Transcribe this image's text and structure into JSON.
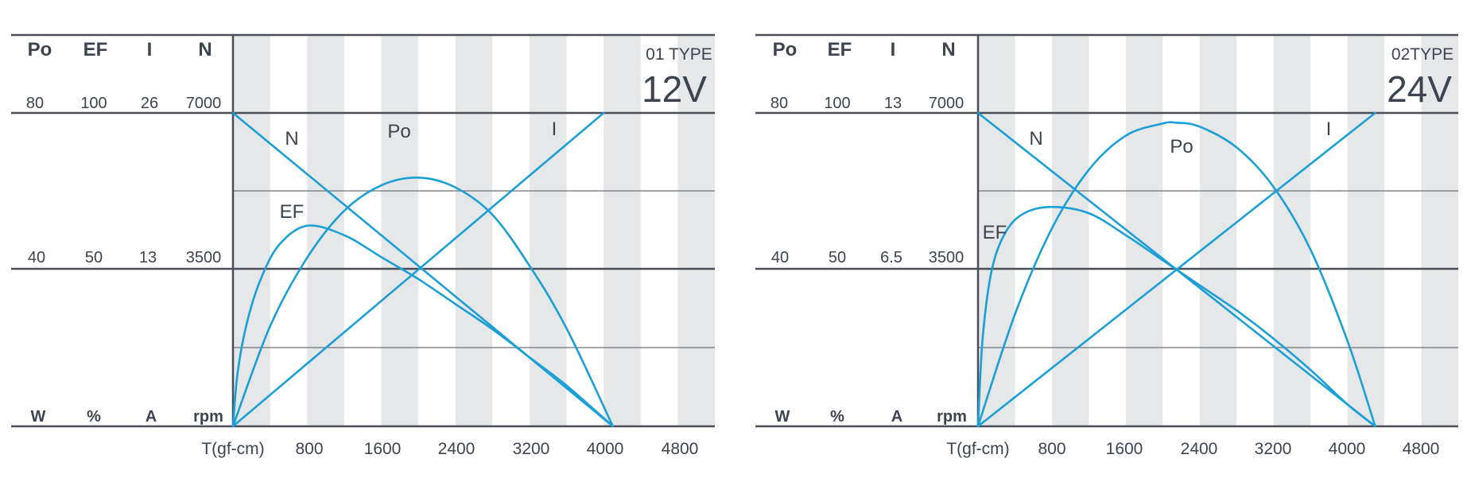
{
  "colors": {
    "curve": "#1a9fd6",
    "grid_dark": "#4a4f57",
    "grid_light": "#6d7178",
    "band": "#e6e7e9",
    "text": "#3d4450"
  },
  "chart_data": [
    {
      "type": "line",
      "type_label": "01 TYPE",
      "voltage": "12V",
      "xlabel": "T(gf-cm)",
      "x_ticks": [
        "800",
        "1600",
        "2400",
        "3200",
        "4000",
        "4800"
      ],
      "xlim": [
        0,
        5200
      ],
      "headers": [
        "Po",
        "EF",
        "I",
        "N"
      ],
      "scale_top": [
        "80",
        "100",
        "26",
        "7000"
      ],
      "scale_mid": [
        "40",
        "50",
        "13",
        "3500"
      ],
      "units": [
        "W",
        "%",
        "A",
        "rpm"
      ],
      "curve_labels": {
        "N": "N",
        "Po": "Po",
        "I": "I",
        "EF": "EF"
      },
      "series": [
        {
          "name": "N",
          "unit": "rpm",
          "max": 7000,
          "x": [
            0,
            4100
          ],
          "values": [
            7000,
            0
          ]
        },
        {
          "name": "I",
          "unit": "A",
          "max": 26,
          "x": [
            0,
            4000
          ],
          "values": [
            0,
            26
          ]
        },
        {
          "name": "Po",
          "unit": "W",
          "max": 80,
          "x": [
            0,
            400,
            800,
            1200,
            1600,
            2000,
            2400,
            2800,
            3200,
            3600,
            4100
          ],
          "values": [
            0,
            25.5,
            43,
            55,
            61.5,
            63.5,
            61,
            54,
            41,
            25,
            0
          ]
        },
        {
          "name": "EF",
          "unit": "%",
          "max": 100,
          "x": [
            0,
            50,
            150,
            300,
            500,
            800,
            1200,
            1600,
            2000,
            2400,
            2800,
            3200,
            3600,
            4100
          ],
          "values": [
            0,
            17,
            33,
            47,
            58,
            64,
            61,
            54,
            47,
            39,
            31,
            22,
            13,
            0
          ]
        }
      ]
    },
    {
      "type": "line",
      "type_label": "02TYPE",
      "voltage": "24V",
      "xlabel": "T(gf-cm)",
      "x_ticks": [
        "800",
        "1600",
        "2400",
        "3200",
        "4000",
        "4800"
      ],
      "xlim": [
        0,
        5200
      ],
      "headers": [
        "Po",
        "EF",
        "I",
        "N"
      ],
      "scale_top": [
        "80",
        "100",
        "13",
        "7000"
      ],
      "scale_mid": [
        "40",
        "50",
        "6.5",
        "3500"
      ],
      "units": [
        "W",
        "%",
        "A",
        "rpm"
      ],
      "curve_labels": {
        "N": "N",
        "Po": "Po",
        "I": "I",
        "EF": "EF"
      },
      "series": [
        {
          "name": "N",
          "unit": "rpm",
          "max": 7000,
          "x": [
            0,
            4300
          ],
          "values": [
            7000,
            0
          ]
        },
        {
          "name": "I",
          "unit": "A",
          "max": 13,
          "x": [
            0,
            4300
          ],
          "values": [
            0,
            13
          ]
        },
        {
          "name": "Po",
          "unit": "W",
          "max": 80,
          "x": [
            0,
            400,
            800,
            1200,
            1600,
            2000,
            2150,
            2400,
            2800,
            3200,
            3600,
            4000,
            4300
          ],
          "values": [
            0,
            28.6,
            50.5,
            65.5,
            74.2,
            77.3,
            77.5,
            76.5,
            71.2,
            61.1,
            45.1,
            21.8,
            0
          ]
        },
        {
          "name": "EF",
          "unit": "%",
          "max": 100,
          "x": [
            0,
            50,
            150,
            300,
            500,
            800,
            1200,
            1600,
            2000,
            2400,
            2800,
            3200,
            3600,
            4000,
            4300
          ],
          "values": [
            0,
            28,
            50,
            62,
            68,
            70,
            68,
            61,
            53,
            45,
            37,
            28,
            18,
            7,
            0
          ]
        }
      ]
    }
  ]
}
